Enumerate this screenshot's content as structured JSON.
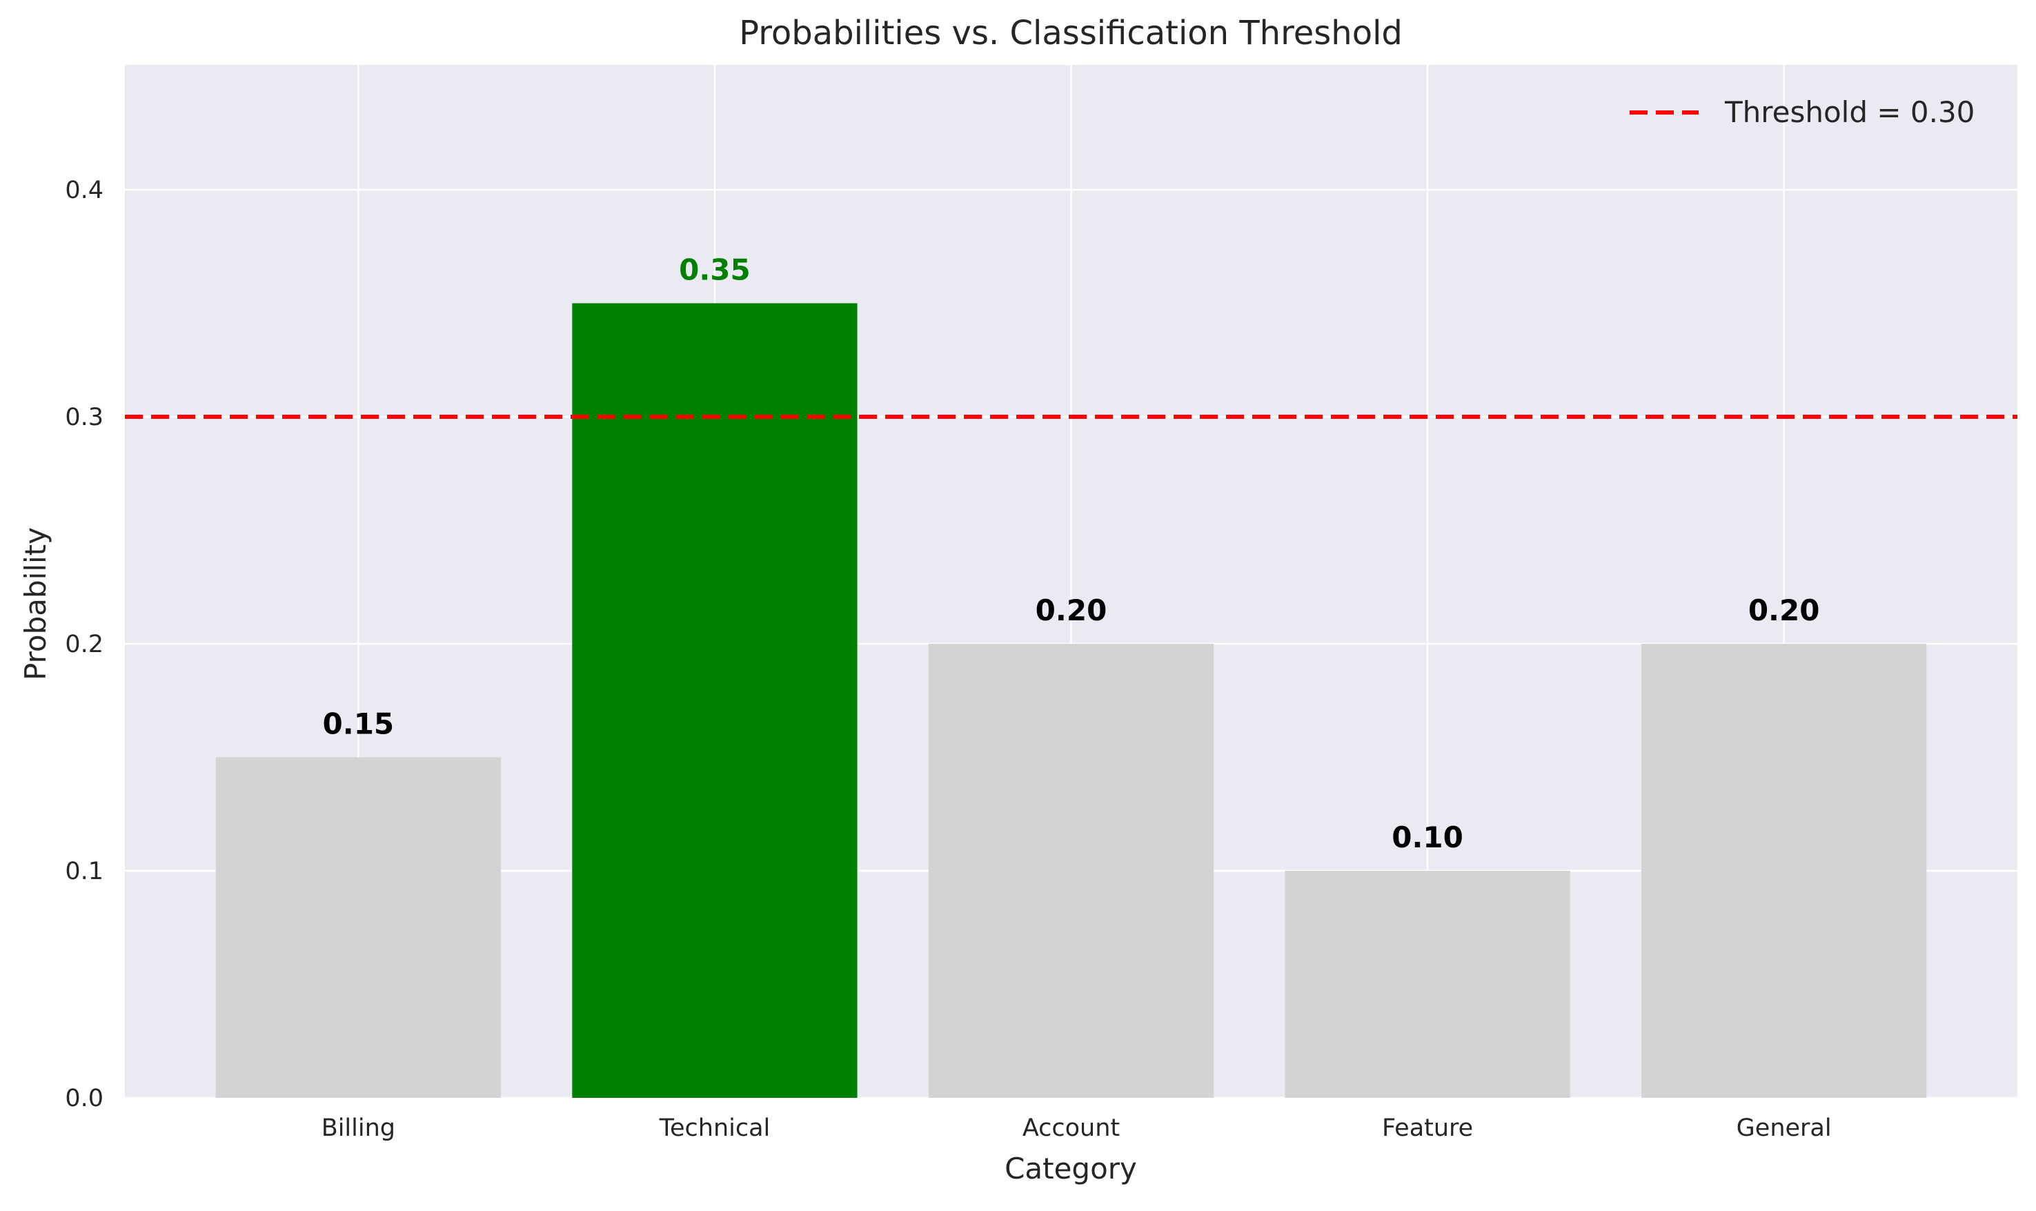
{
  "chart_data": {
    "type": "bar",
    "title": "Probabilities vs. Classification Threshold",
    "xlabel": "Category",
    "ylabel": "Probability",
    "categories": [
      "Billing",
      "Technical",
      "Account",
      "Feature",
      "General"
    ],
    "values": [
      0.15,
      0.35,
      0.2,
      0.1,
      0.2
    ],
    "value_labels": [
      "0.15",
      "0.35",
      "0.20",
      "0.10",
      "0.20"
    ],
    "bar_colors": [
      "#d3d3d3",
      "#008000",
      "#d3d3d3",
      "#d3d3d3",
      "#d3d3d3"
    ],
    "label_colors": [
      "#000000",
      "#008000",
      "#000000",
      "#000000",
      "#000000"
    ],
    "ylim": [
      0,
      0.455
    ],
    "yticks": [
      0.0,
      0.1,
      0.2,
      0.3,
      0.4
    ],
    "ytick_labels": [
      "0.0",
      "0.1",
      "0.2",
      "0.3",
      "0.4"
    ],
    "threshold": {
      "value": 0.3,
      "label": "Threshold = 0.30",
      "color": "#ff0000",
      "style": "dashed"
    },
    "legend": {
      "placement": "top-right"
    },
    "grid": true,
    "background_color": "#eaeaf2",
    "grid_color": "#ffffff"
  }
}
